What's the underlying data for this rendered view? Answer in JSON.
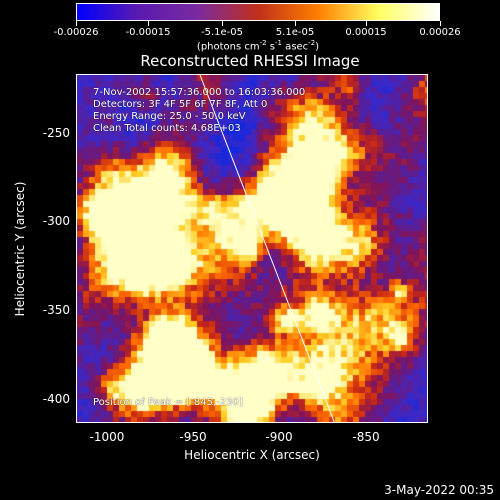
{
  "colorbar": {
    "tick_labels": [
      "-0.00026",
      "-0.00015",
      "-5.1e-05",
      "5.1e-05",
      "0.00015",
      "0.00026"
    ],
    "unit_label": "(photons cm",
    "unit_exp1": "-2",
    "unit_mid": " s",
    "unit_exp2": "-1",
    "unit_mid2": " asec",
    "unit_exp3": "-2",
    "unit_end": ")",
    "colors": [
      "#0000ff",
      "#5a1ab0",
      "#7a2aa0",
      "#c0301a",
      "#ff8000",
      "#ffff60",
      "#ffffff"
    ]
  },
  "title": "Reconstructed RHESSI Image",
  "info": {
    "line1": "7-Nov-2002 15:57:36.000 to 16:03:36.000",
    "line2": "Detectors: 3F 4F 5F 6F 7F 8F, Att 0",
    "line3": "Energy Range: 25.0 - 50.0 keV",
    "line4": "Clean     Total counts: 4.68E+03",
    "peak": "Position of Peak = [-845,-230]"
  },
  "axes": {
    "xlabel": "Heliocentric X (arcsec)",
    "ylabel": "Heliocentric Y (arcsec)",
    "xticks": [
      "-1000",
      "-950",
      "-900",
      "-850"
    ],
    "yticks": [
      "-250",
      "-300",
      "-350",
      "-400"
    ]
  },
  "timestamp": "3-May-2022 00:35",
  "image": {
    "description_colormap": "blue-purple-red-yellow-white",
    "limb": "solar limb line"
  }
}
